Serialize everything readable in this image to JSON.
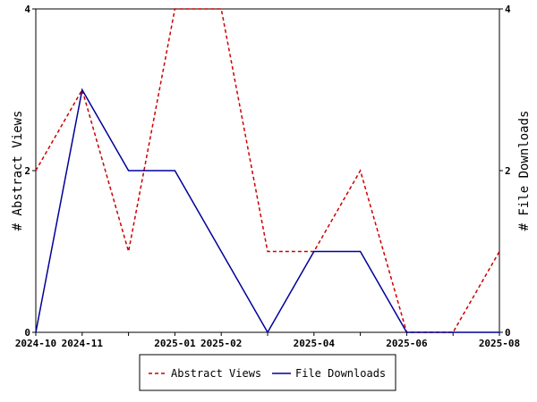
{
  "chart_data": {
    "type": "line",
    "x": [
      "2024-10",
      "2024-11",
      "2024-12",
      "2025-01",
      "2025-02",
      "2025-03",
      "2025-04",
      "2025-05",
      "2025-06",
      "2025-07",
      "2025-08"
    ],
    "x_tick_labels": [
      "2024-10",
      "2024-11",
      "2025-01",
      "2025-02",
      "2025-04",
      "2025-06",
      "2025-08"
    ],
    "y_left_label": "# Abstract Views",
    "y_right_label": "# File Downloads",
    "y_left_ticks": [
      "0",
      "2",
      "4"
    ],
    "y_right_ticks": [
      "0",
      "2",
      "4"
    ],
    "ylim": [
      0,
      4
    ],
    "grid": false,
    "legend_position": "bottom-center",
    "series": [
      {
        "name": "Abstract Views",
        "axis": "left",
        "color": "#cc0000",
        "style": "dashed",
        "values": [
          2,
          3,
          1,
          4,
          4,
          1,
          1,
          2,
          0,
          0,
          1
        ]
      },
      {
        "name": "File Downloads",
        "axis": "right",
        "color": "#000099",
        "style": "solid",
        "values": [
          0,
          3,
          2,
          2,
          1,
          0,
          1,
          1,
          0,
          0,
          0
        ]
      }
    ]
  }
}
